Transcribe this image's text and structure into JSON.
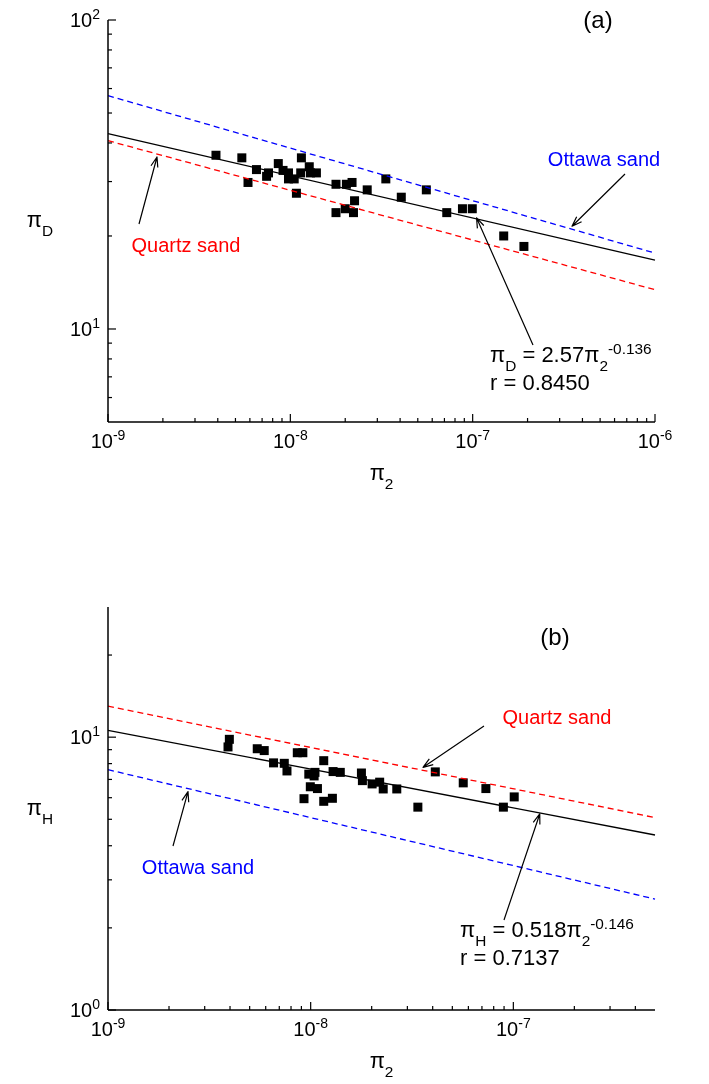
{
  "chart_data": [
    {
      "type": "scatter",
      "xlabel": "π$_{2}$",
      "ylabel": "π$_{D}$",
      "log": "xy",
      "xlim": [
        1e-09,
        1e-06
      ],
      "ylim": [
        5,
        100
      ],
      "xticks": [
        {
          "value": 1e-09,
          "label": "10$^{-9}$"
        },
        {
          "value": 2e-09,
          "label": null
        },
        {
          "value": 3e-09,
          "label": null
        },
        {
          "value": 4e-09,
          "label": null
        },
        {
          "value": 5e-09,
          "label": null
        },
        {
          "value": 6e-09,
          "label": null
        },
        {
          "value": 7e-09,
          "label": null
        },
        {
          "value": 8e-09,
          "label": null
        },
        {
          "value": 9e-09,
          "label": null
        },
        {
          "value": 1e-08,
          "label": "10$^{-8}$"
        },
        {
          "value": 2e-08,
          "label": null
        },
        {
          "value": 3e-08,
          "label": null
        },
        {
          "value": 4e-08,
          "label": null
        },
        {
          "value": 5e-08,
          "label": null
        },
        {
          "value": 6e-08,
          "label": null
        },
        {
          "value": 7e-08,
          "label": null
        },
        {
          "value": 8e-08,
          "label": null
        },
        {
          "value": 9e-08,
          "label": null
        },
        {
          "value": 1e-07,
          "label": "10$^{-7}$"
        },
        {
          "value": 2e-07,
          "label": null
        },
        {
          "value": 3e-07,
          "label": null
        },
        {
          "value": 4e-07,
          "label": null
        },
        {
          "value": 5e-07,
          "label": null
        },
        {
          "value": 6e-07,
          "label": null
        },
        {
          "value": 7e-07,
          "label": null
        },
        {
          "value": 8e-07,
          "label": null
        },
        {
          "value": 9e-07,
          "label": null
        },
        {
          "value": 1e-06,
          "label": "10$^{-6}$"
        }
      ],
      "yticks": [
        {
          "value": 6,
          "label": null
        },
        {
          "value": 7,
          "label": null
        },
        {
          "value": 8,
          "label": null
        },
        {
          "value": 9,
          "label": null
        },
        {
          "value": 10,
          "label": "10$^{1}$"
        },
        {
          "value": 20,
          "label": null
        },
        {
          "value": 30,
          "label": null
        },
        {
          "value": 40,
          "label": null
        },
        {
          "value": 50,
          "label": null
        },
        {
          "value": 60,
          "label": null
        },
        {
          "value": 70,
          "label": null
        },
        {
          "value": 80,
          "label": null
        },
        {
          "value": 90,
          "label": null
        },
        {
          "value": 100,
          "label": "10$^{2}$"
        }
      ],
      "series": [
        {
          "marker": "square",
          "color": "#000000",
          "x": [
            3.91e-09,
            5.42e-09,
            6.52e-09,
            5.86e-09,
            7.41e-09,
            7.59e-09,
            8.59e-09,
            9.12e-09,
            9.77e-09,
            9.77e-09,
            1.05e-08,
            1.08e-08,
            1.15e-08,
            1.14e-08,
            1.27e-08,
            1.29e-08,
            1.39e-08,
            1.78e-08,
            2e-08,
            1.78e-08,
            2.03e-08,
            2.18e-08,
            2.25e-08,
            2.22e-08,
            2.64e-08,
            3.34e-08,
            4.06e-08,
            5.57e-08,
            7.21e-08,
            8.79e-08,
            9.95e-08,
            1.48e-07,
            1.91e-07
          ],
          "values": [
            36.5,
            35.8,
            32.8,
            29.8,
            31.2,
            32.0,
            34.3,
            32.6,
            32.0,
            30.6,
            30.6,
            27.5,
            35.8,
            32.0,
            33.5,
            32.0,
            32.0,
            29.4,
            24.5,
            23.8,
            29.4,
            29.8,
            26.0,
            23.8,
            28.2,
            30.6,
            26.7,
            28.2,
            23.8,
            24.5,
            24.5,
            20.0,
            18.5
          ]
        },
        {
          "type": "line",
          "color": "#000000",
          "line_style": "solid",
          "x": [
            1e-09,
            1e-06
          ],
          "values": [
            42.9,
            16.7
          ]
        },
        {
          "type": "line",
          "name": "Quartz sand",
          "color": "#ff0000",
          "line_style": "dashed",
          "x": [
            1e-09,
            1e-06
          ],
          "values": [
            40.7,
            13.4
          ]
        },
        {
          "type": "line",
          "name": "Ottawa sand",
          "color": "#0000ff",
          "line_style": "dashed",
          "x": [
            1e-09,
            1e-06
          ],
          "values": [
            56.9,
            17.6
          ]
        }
      ],
      "annotations": [
        "(a)",
        {
          "text": "π$_{D}$ = 2.57π$_{2}$$^{-0.136}$",
          "x": 1.05e-07,
          "y": 22.9
        },
        "r = 0.8450"
      ]
    },
    {
      "type": "scatter",
      "xlabel": "π$_{2}$",
      "ylabel": "π$_{H}$",
      "log": "xy",
      "xlim": [
        1e-09,
        5e-07
      ],
      "ylim": [
        1,
        30
      ],
      "xticks": [
        {
          "value": 1e-09,
          "label": "10$^{-9}$"
        },
        {
          "value": 2e-09,
          "label": null
        },
        {
          "value": 3e-09,
          "label": null
        },
        {
          "value": 4e-09,
          "label": null
        },
        {
          "value": 5e-09,
          "label": null
        },
        {
          "value": 6e-09,
          "label": null
        },
        {
          "value": 7e-09,
          "label": null
        },
        {
          "value": 8e-09,
          "label": null
        },
        {
          "value": 9e-09,
          "label": null
        },
        {
          "value": 1e-08,
          "label": "10$^{-8}$"
        },
        {
          "value": 2e-08,
          "label": null
        },
        {
          "value": 3e-08,
          "label": null
        },
        {
          "value": 4e-08,
          "label": null
        },
        {
          "value": 5e-08,
          "label": null
        },
        {
          "value": 6e-08,
          "label": null
        },
        {
          "value": 7e-08,
          "label": null
        },
        {
          "value": 8e-08,
          "label": null
        },
        {
          "value": 9e-08,
          "label": null
        },
        {
          "value": 1e-07,
          "label": "10$^{-7}$"
        },
        {
          "value": 2e-07,
          "label": null
        },
        {
          "value": 3e-07,
          "label": null
        },
        {
          "value": 4e-07,
          "label": null
        }
      ],
      "yticks": [
        {
          "value": 1,
          "label": "10$^{0}$"
        },
        {
          "value": 2,
          "label": null
        },
        {
          "value": 3,
          "label": null
        },
        {
          "value": 4,
          "label": null
        },
        {
          "value": 5,
          "label": null
        },
        {
          "value": 6,
          "label": null
        },
        {
          "value": 7,
          "label": null
        },
        {
          "value": 8,
          "label": null
        },
        {
          "value": 9,
          "label": null
        },
        {
          "value": 10,
          "label": "10$^{1}$"
        },
        {
          "value": 20,
          "label": null
        }
      ],
      "series": [
        {
          "marker": "square",
          "color": "#000000",
          "x": [
            3.91e-09,
            3.97e-09,
            5.45e-09,
            5.9e-09,
            6.56e-09,
            7.41e-09,
            7.64e-09,
            8.59e-09,
            9.15e-09,
            9.79e-09,
            1.04e-08,
            1.05e-08,
            9.96e-09,
            1.08e-08,
            9.27e-09,
            1.16e-08,
            1.16e-08,
            1.28e-08,
            1.29e-08,
            1.4e-08,
            1.78e-08,
            1.8e-08,
            2.01e-08,
            2.19e-08,
            2.28e-08,
            2.66e-08,
            3.38e-08,
            4.12e-08,
            5.66e-08,
            7.32e-08,
            8.93e-08,
            1.01e-07
          ],
          "values": [
            9.21,
            9.82,
            9.07,
            8.93,
            8.05,
            8.02,
            7.52,
            8.77,
            8.77,
            7.32,
            7.21,
            7.43,
            6.58,
            6.48,
            5.95,
            8.2,
            5.82,
            5.97,
            7.48,
            7.43,
            7.39,
            6.93,
            6.74,
            6.84,
            6.46,
            6.46,
            5.54,
            7.46,
            6.8,
            6.48,
            5.54,
            6.04
          ]
        },
        {
          "type": "line",
          "color": "#000000",
          "line_style": "solid",
          "x": [
            1e-09,
            5e-07
          ],
          "values": [
            10.6,
            4.38
          ]
        },
        {
          "type": "line",
          "name": "Quartz sand",
          "color": "#ff0000",
          "line_style": "dashed",
          "x": [
            1e-09,
            5e-07
          ],
          "values": [
            13.0,
            5.07
          ]
        },
        {
          "type": "line",
          "name": "Ottawa sand",
          "color": "#0000ff",
          "line_style": "dashed",
          "x": [
            1e-09,
            5e-07
          ],
          "values": [
            7.6,
            2.55
          ]
        }
      ],
      "annotations": [
        "(b)",
        {
          "text": "π$_{H}$ = 0.518π$_{2}$$^{-0.146}$",
          "x": 1.35e-07,
          "y": 5.23
        },
        "r = 0.7137"
      ]
    }
  ]
}
